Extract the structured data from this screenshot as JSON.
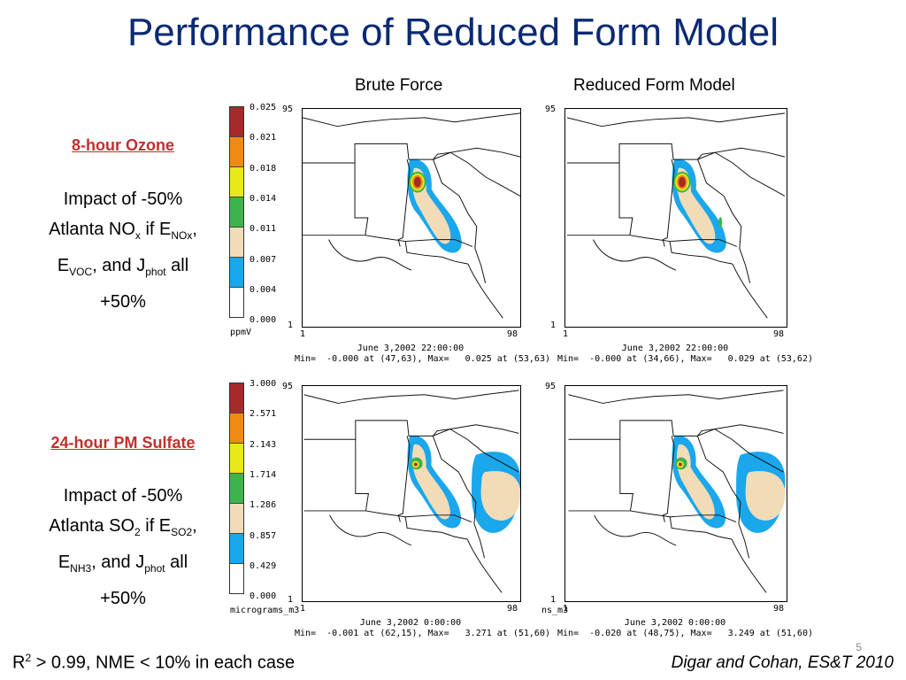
{
  "title": "Performance of Reduced Form Model",
  "columns": {
    "left": "Brute Force",
    "right": "Reduced Form Model"
  },
  "rows": [
    {
      "label": "8-hour Ozone ",
      "impact": {
        "line1": "Impact of -50%",
        "p_atl": "Atlanta NO",
        "s_x": "x",
        "p_if": " if E",
        "s_nox": "NOx",
        "p_c1": ",",
        "p_e": "E",
        "s_voc": "VOC",
        "p_and": ", and J",
        "s_phot": "phot",
        "p_all": " all",
        "line4": "+50%"
      },
      "legend": {
        "ticks": [
          "0.025",
          "0.021",
          "0.018",
          "0.014",
          "0.011",
          "0.007",
          "0.004",
          "0.000"
        ],
        "unit": "ppmV"
      },
      "axis": {
        "ymax": "95",
        "ymin": "1",
        "xmin": "1",
        "xmax": "98"
      },
      "maps": [
        {
          "date": "June 3,2002 22:00:00",
          "minmax": "Min=  -0.000 at (47,63), Max=   0.025 at (53,63)"
        },
        {
          "date": "June 3,2002 22:00:00",
          "minmax": "Min=  -0.000 at (34,66), Max=   0.029 at (53,62)"
        }
      ]
    },
    {
      "label": "24-hour PM Sulfate ",
      "impact": {
        "line1": "Impact of -50%",
        "p_atl": "Atlanta SO",
        "s_x": "2",
        "p_if": " if E",
        "s_nox": "SO2",
        "p_c1": ",",
        "p_e": "E",
        "s_voc": "NH3",
        "p_and": ", and J",
        "s_phot": "phot",
        "p_all": " all",
        "line4": "+50%"
      },
      "legend": {
        "ticks": [
          "3.000",
          "2.571",
          "2.143",
          "1.714",
          "1.286",
          "0.857",
          "0.429",
          "0.000"
        ],
        "unit_left": "micrograms_m3",
        "unit_right": "ns_m3"
      },
      "axis": {
        "ymax": "95",
        "ymin": "1",
        "xmin": "1",
        "xmax": "98"
      },
      "maps": [
        {
          "date": "June 3,2002 0:00:00",
          "minmax": "Min=  -0.001 at (62,15), Max=   3.271 at (51,60)"
        },
        {
          "date": "June 3,2002 0:00:00",
          "minmax": "Min=  -0.020 at (48,75), Max=   3.249 at (51,60)"
        }
      ]
    }
  ],
  "legend_colors": [
    "#a52a2a",
    "#f08a16",
    "#e8e81a",
    "#3cb44b",
    "#f2dcb8",
    "#1aa7ec",
    "#ffffff"
  ],
  "footer": {
    "r2_a": "R",
    "r2_sup": "2",
    "r2_b": " > 0.99, NME < 10% in each case",
    "citation": "Digar and Cohan, ES&T 2010",
    "slide_number": "5"
  }
}
